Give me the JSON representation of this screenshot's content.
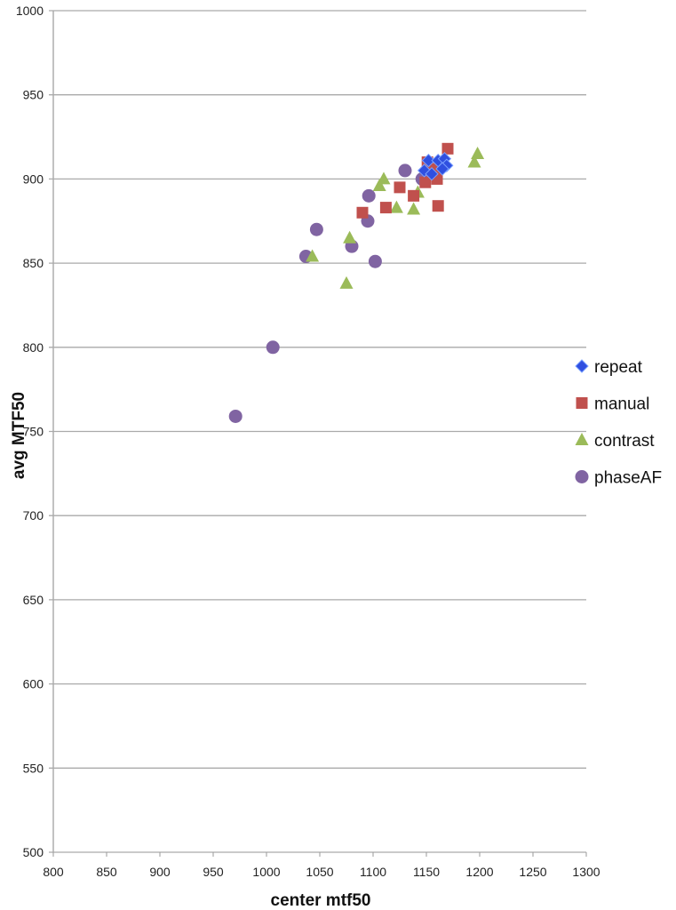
{
  "chart_data": {
    "type": "scatter",
    "title": "",
    "xlabel": "center mtf50",
    "ylabel": "avg MTF50",
    "xlim": [
      800,
      1300
    ],
    "ylim": [
      500,
      1000
    ],
    "xticks": [
      800,
      850,
      900,
      950,
      1000,
      1050,
      1100,
      1150,
      1200,
      1250,
      1300
    ],
    "yticks": [
      500,
      550,
      600,
      650,
      700,
      750,
      800,
      850,
      900,
      950,
      1000
    ],
    "grid": "horizontal",
    "legend_position": "right",
    "series": [
      {
        "name": "repeat",
        "marker": "diamond",
        "color": "#2f4fe0",
        "points": [
          [
            1152,
            911
          ],
          [
            1148,
            905
          ],
          [
            1161,
            911
          ],
          [
            1167,
            912
          ],
          [
            1169,
            908
          ],
          [
            1165,
            906
          ],
          [
            1155,
            903
          ]
        ]
      },
      {
        "name": "manual",
        "marker": "square",
        "color": "#c0504d",
        "points": [
          [
            1090,
            880
          ],
          [
            1112,
            883
          ],
          [
            1125,
            895
          ],
          [
            1138,
            890
          ],
          [
            1149,
            898
          ],
          [
            1151,
            910
          ],
          [
            1157,
            906
          ],
          [
            1161,
            884
          ],
          [
            1160,
            900
          ],
          [
            1170,
            918
          ],
          [
            1160,
            902
          ]
        ]
      },
      {
        "name": "contrast",
        "marker": "triangle",
        "color": "#9bbb59",
        "points": [
          [
            1043,
            854
          ],
          [
            1075,
            838
          ],
          [
            1078,
            865
          ],
          [
            1106,
            896
          ],
          [
            1110,
            900
          ],
          [
            1122,
            883
          ],
          [
            1138,
            882
          ],
          [
            1142,
            892
          ],
          [
            1195,
            910
          ],
          [
            1198,
            915
          ]
        ]
      },
      {
        "name": "phaseAF",
        "marker": "circle",
        "color": "#8064a2",
        "points": [
          [
            971,
            759
          ],
          [
            1006,
            800
          ],
          [
            1037,
            854
          ],
          [
            1047,
            870
          ],
          [
            1080,
            860
          ],
          [
            1102,
            851
          ],
          [
            1095,
            875
          ],
          [
            1096,
            890
          ],
          [
            1130,
            905
          ],
          [
            1146,
            900
          ]
        ]
      }
    ]
  }
}
